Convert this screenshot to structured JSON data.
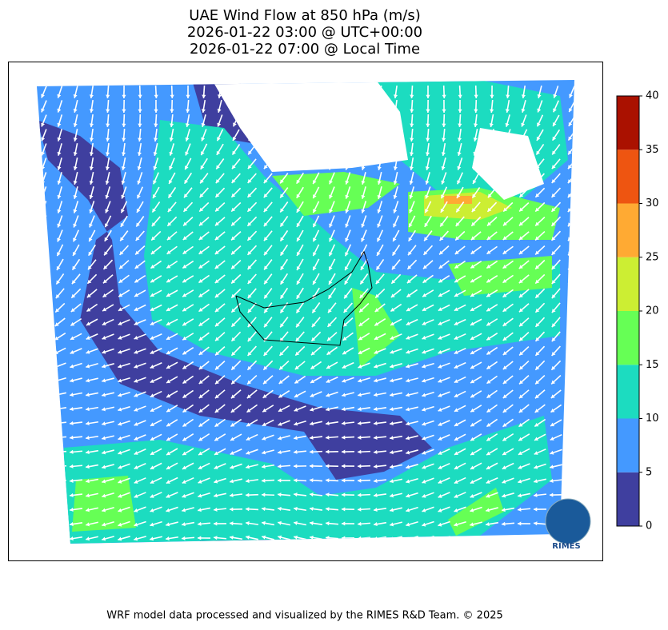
{
  "title": [
    "UAE Wind Flow at 850 hPa (m/s)",
    "2026-01-22 03:00 @ UTC+00:00",
    "2026-01-22 07:00 @ Local Time"
  ],
  "colorbar": {
    "ticks": [
      0,
      5,
      10,
      15,
      20,
      25,
      30,
      35,
      40
    ],
    "colors": [
      "#3f3f9f",
      "#4499ff",
      "#1cdcc0",
      "#66ff55",
      "#ccee33",
      "#ffaa33",
      "#ee5511",
      "#aa1100"
    ]
  },
  "logo": "RIMES",
  "footer": "WRF model data processed and visualized by the RIMES R&D Team. © 2025"
}
